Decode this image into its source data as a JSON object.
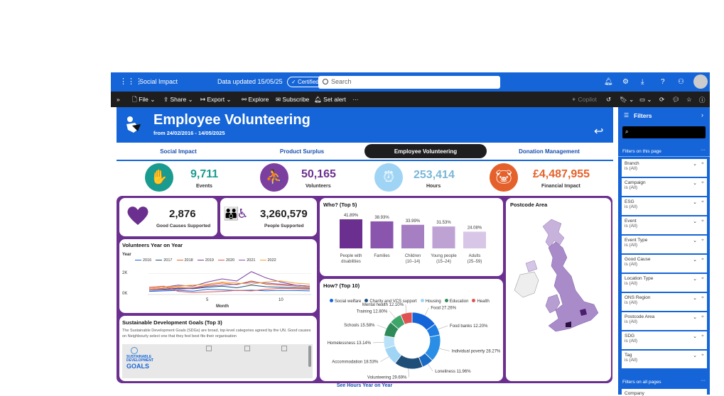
{
  "appbar": {
    "workspace": "Social Impact",
    "certified": "Certified",
    "updated": "Data updated 15/05/25",
    "search_placeholder": "Search"
  },
  "toolbar": {
    "file": "File",
    "share": "Share",
    "export": "Export",
    "explore": "Explore",
    "subscribe": "Subscribe",
    "set_alert": "Set alert",
    "more": "···",
    "copilot": "Copilot"
  },
  "header": {
    "title": "Employee Volunteering",
    "subtitle": "from 24/02/2016 - 14/05/2025"
  },
  "tabs": [
    {
      "label": "Social Impact"
    },
    {
      "label": "Product Surplus"
    },
    {
      "label": "Employee Volunteering"
    },
    {
      "label": "Donation Management"
    }
  ],
  "kpis": [
    {
      "value": "9,711",
      "label": "Events",
      "color": "#1a9b8f"
    },
    {
      "value": "50,165",
      "label": "Volunteers",
      "color": "#7b3fa0"
    },
    {
      "value": "253,414",
      "label": "Hours",
      "color": "#9fd4f5"
    },
    {
      "value": "£4,487,955",
      "label": "Financial Impact",
      "color": "#e5612b"
    }
  ],
  "good_causes": {
    "value": "2,876",
    "label": "Good Causes Supported"
  },
  "people": {
    "value": "3,260,579",
    "label": "People Supported"
  },
  "volunteers_chart": {
    "title": "Volunteers Year on Year",
    "legend_label": "Year",
    "xlabel": "Month",
    "y_ticks": [
      "2K",
      "0K"
    ],
    "x_ticks": [
      "5",
      "10"
    ]
  },
  "sdg": {
    "title": "Sustainable Development Goals (Top 3)",
    "desc": "The Sustainable Development Goals (SDGs) are broad, top-level categories agreed by the UN. Good causes on Neighbourly select one that they feel best fits their organisation",
    "logo_line1": "SUSTAINABLE",
    "logo_line2": "DEVELOPMENT",
    "logo_line3": "GOALS"
  },
  "who_chart_title": "Who? (Top 5)",
  "how_chart_title": "How? (Top 10)",
  "how_legend": [
    {
      "name": "Social welfare",
      "color": "#1565d8"
    },
    {
      "name": "Charity and VCS support",
      "color": "#1f4e79"
    },
    {
      "name": "Housing",
      "color": "#9fd4f5"
    },
    {
      "name": "Education",
      "color": "#2e8b57"
    },
    {
      "name": "Health",
      "color": "#e05252"
    }
  ],
  "postcode": {
    "title": "Postcode Area"
  },
  "footer_link": "See Hours Year on Year",
  "filters": {
    "title": "Filters",
    "on_page": "Filters on this page",
    "on_all": "Filters on all pages",
    "items": [
      {
        "name": "Branch",
        "value": "is (All)"
      },
      {
        "name": "Campaign",
        "value": "is (All)"
      },
      {
        "name": "ESG",
        "value": "is (All)"
      },
      {
        "name": "Event",
        "value": "is (All)"
      },
      {
        "name": "Event Type",
        "value": "is (All)"
      },
      {
        "name": "Good Cause",
        "value": "is (All)"
      },
      {
        "name": "Location Type",
        "value": "is (All)"
      },
      {
        "name": "ONS Region",
        "value": "is (All)"
      },
      {
        "name": "Postcode Area",
        "value": "is (All)"
      },
      {
        "name": "SDG",
        "value": "is (All)"
      },
      {
        "name": "Tag",
        "value": "is (All)"
      }
    ],
    "all_first": "Company"
  },
  "chart_data": [
    {
      "type": "bar",
      "title": "Who? (Top 5)",
      "categories": [
        "People with disabilities",
        "Families",
        "Children (10–14)",
        "Young people (15–24)",
        "Adults (25–59)"
      ],
      "values": [
        41.89,
        38.93,
        33.99,
        31.53,
        24.08
      ],
      "value_labels": [
        "41.89%",
        "38.93%",
        "33.99%",
        "31.53%",
        "24.08%"
      ],
      "colors": [
        "#6b2f8f",
        "#8a55ad",
        "#a57fc2",
        "#bfa2d4",
        "#d8c6e6"
      ]
    },
    {
      "type": "pie",
      "title": "How? (Top 10)",
      "slices": [
        {
          "label": "Food",
          "pct": "27.26%",
          "value": 27.26,
          "color": "#1565d8"
        },
        {
          "label": "Food banks",
          "pct": "12.20%",
          "value": 12.2,
          "color": "#1e7be0"
        },
        {
          "label": "Individual poverty",
          "pct": "28.27%",
          "value": 28.27,
          "color": "#2b8ee6"
        },
        {
          "label": "Loneliness",
          "pct": "11.96%",
          "value": 11.96,
          "color": "#1a6bc4"
        },
        {
          "label": "Volunteering",
          "pct": "29.69%",
          "value": 29.69,
          "color": "#1f4e79"
        },
        {
          "label": "Accommodation",
          "pct": "18.53%",
          "value": 18.53,
          "color": "#9fd4f5"
        },
        {
          "label": "Homelessness",
          "pct": "13.14%",
          "value": 13.14,
          "color": "#b9e1f8"
        },
        {
          "label": "Schools",
          "pct": "15.58%",
          "value": 15.58,
          "color": "#2e8b57"
        },
        {
          "label": "Training",
          "pct": "12.80%",
          "value": 12.8,
          "color": "#3fa66a"
        },
        {
          "label": "Mental health",
          "pct": "12.10%",
          "value": 12.1,
          "color": "#e05252"
        }
      ]
    },
    {
      "type": "line",
      "title": "Volunteers Year on Year",
      "xlabel": "Month",
      "x": [
        1,
        2,
        3,
        4,
        5,
        6,
        7,
        8,
        9,
        10,
        11,
        12
      ],
      "ylim": [
        0,
        3000
      ],
      "series": [
        {
          "name": "2016",
          "color": "#1565d8",
          "values": [
            300,
            350,
            400,
            320,
            500,
            450,
            380,
            420,
            360,
            400,
            380,
            350
          ]
        },
        {
          "name": "2017",
          "color": "#1f4e79",
          "values": [
            400,
            500,
            600,
            550,
            700,
            800,
            650,
            900,
            750,
            700,
            650,
            600
          ]
        },
        {
          "name": "2018",
          "color": "#e5612b",
          "values": [
            500,
            600,
            700,
            650,
            900,
            1100,
            950,
            1300,
            1000,
            900,
            800,
            700
          ]
        },
        {
          "name": "2019",
          "color": "#7b3fa0",
          "values": [
            600,
            700,
            900,
            800,
            1200,
            1500,
            1300,
            2200,
            1600,
            1200,
            900,
            800
          ]
        },
        {
          "name": "2020",
          "color": "#e05252",
          "values": [
            700,
            800,
            300,
            200,
            250,
            300,
            400,
            350,
            500,
            600,
            550,
            500
          ]
        },
        {
          "name": "2021",
          "color": "#8a55ad",
          "values": [
            400,
            450,
            500,
            600,
            800,
            900,
            1000,
            1200,
            1100,
            1000,
            900,
            800
          ]
        },
        {
          "name": "2022",
          "color": "#f0a030",
          "values": [
            600,
            700,
            800,
            900,
            1000,
            1200,
            1100,
            1000,
            1200,
            1300,
            1100,
            1000
          ]
        }
      ]
    }
  ]
}
